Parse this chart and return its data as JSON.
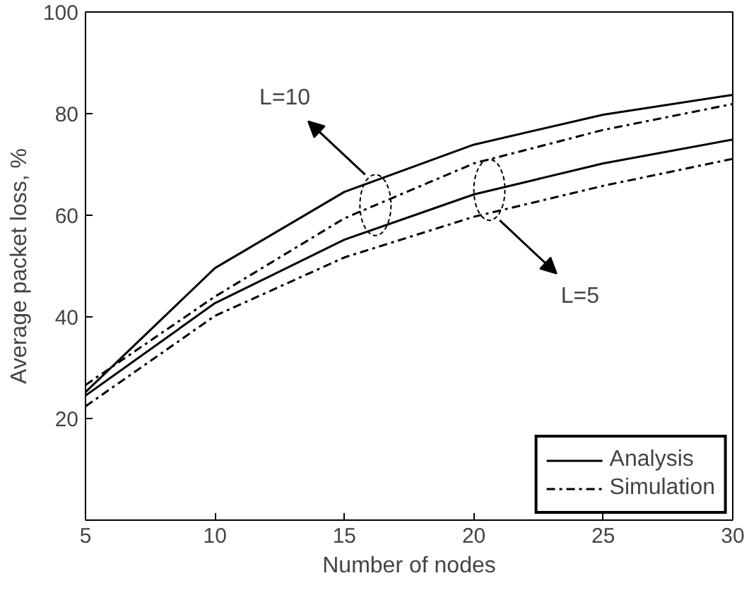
{
  "chart_data": {
    "type": "line",
    "xlabel": "Number of nodes",
    "ylabel": "Average packet loss, %",
    "x": [
      5,
      10,
      15,
      20,
      25,
      30
    ],
    "series": [
      {
        "name": "Analysis",
        "color": "#000000",
        "line_style": "solid",
        "values": [
          25.2,
          49.6,
          64.6,
          73.9,
          79.8,
          83.7
        ]
      },
      {
        "name": "Simulation",
        "color": "#000000",
        "line_style": "dashdot",
        "values": [
          26.6,
          44.0,
          59.4,
          70.2,
          76.8,
          81.9
        ]
      },
      {
        "color": "#000000",
        "line_style": "solid",
        "values": [
          24.5,
          42.7,
          55.2,
          64.1,
          70.2,
          74.9
        ]
      },
      {
        "color": "#000000",
        "line_style": "dashdot",
        "values": [
          22.4,
          40.2,
          51.7,
          59.7,
          65.8,
          71.1
        ]
      }
    ],
    "annotations": [
      "L=10",
      "L=5"
    ],
    "xlim": [
      5,
      30
    ],
    "xticks": [
      5,
      10,
      15,
      20,
      25,
      30
    ],
    "ylim": [
      0,
      100
    ],
    "yticks": [
      20,
      40,
      60,
      80,
      100
    ],
    "grid": false,
    "legend": "bottom right",
    "marker": "none"
  }
}
